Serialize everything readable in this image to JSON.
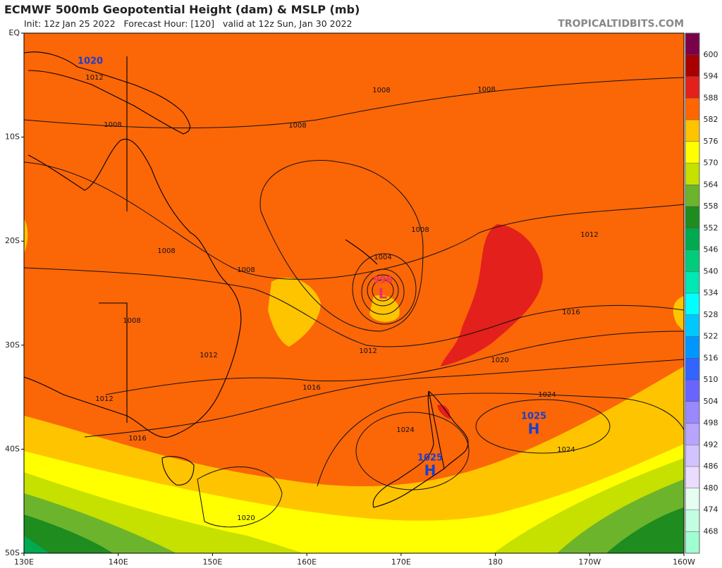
{
  "header": {
    "title": "ECMWF 500mb Geopotential Height (dam) & MSLP (mb)",
    "subtitle": "Init: 12z Jan 25 2022   Forecast Hour: [120]   valid at 12z Sun, Jan 30 2022",
    "site": "TROPICALTIDBITS.COM"
  },
  "axes": {
    "lat_labels": [
      "EQ",
      "10S",
      "20S",
      "30S",
      "40S",
      "50S"
    ],
    "lon_labels": [
      "130E",
      "140E",
      "150E",
      "160E",
      "170E",
      "180",
      "170W",
      "160W"
    ]
  },
  "colorbar": {
    "labels": [
      600,
      594,
      588,
      582,
      576,
      570,
      564,
      558,
      552,
      546,
      540,
      534,
      528,
      522,
      516,
      510,
      504,
      498,
      492,
      486,
      480,
      474,
      468
    ],
    "colors": [
      "#7a004a",
      "#a80000",
      "#e3201b",
      "#ff6600",
      "#ffc400",
      "#ffff00",
      "#c6e000",
      "#6cb42c",
      "#1e8c1e",
      "#00aa50",
      "#00cc7a",
      "#00e8b4",
      "#00ffff",
      "#00c8ff",
      "#0096ff",
      "#3264ff",
      "#6a64ff",
      "#9a88ff",
      "#b8a4ff",
      "#d2c2ff",
      "#eadcff",
      "#e4fff2",
      "#c2ffe2",
      "#a0ffd0"
    ]
  },
  "isobar_labels": [
    1012,
    1008,
    1008,
    1008,
    1008,
    1008,
    1008,
    1008,
    1008,
    1012,
    1012,
    1012,
    1012,
    1016,
    1016,
    1016,
    1020,
    1020,
    1024,
    1024,
    1024,
    1004
  ],
  "pressure_centers": [
    {
      "type": "L",
      "value": 996
    },
    {
      "type": "H",
      "value": 1025
    },
    {
      "type": "H",
      "value": 1025
    },
    {
      "value": 1020
    }
  ]
}
